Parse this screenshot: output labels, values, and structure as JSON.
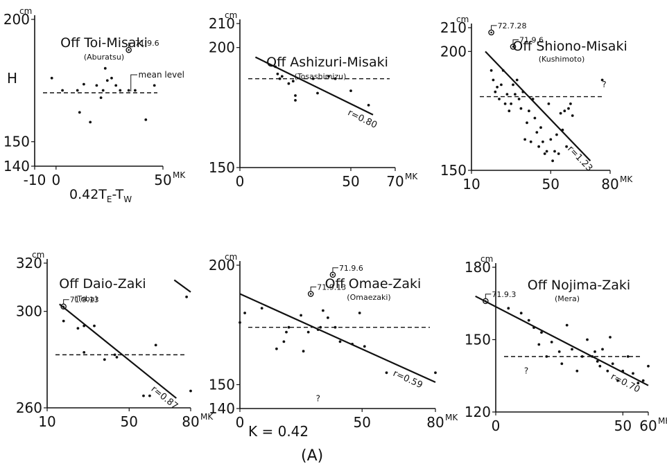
{
  "figure": {
    "k_label": "K = 0.42",
    "panel_label": "(A)"
  },
  "chart_data": [
    {
      "type": "scatter",
      "title": "Off Toi-Misaki",
      "subtitle": "(Aburatsu)",
      "ylabel": "H",
      "yunit": "cm",
      "xlabel": "0.42T",
      "xlabel_sub1": "E",
      "xlabel_mid": "-T",
      "xlabel_sub2": "W",
      "xunit": "MK",
      "xlim": [
        -10,
        50
      ],
      "ylim": [
        140,
        200
      ],
      "xticks": [
        -10,
        0,
        50
      ],
      "yticks": [
        140,
        150,
        200
      ],
      "ytick_labels": [
        "140",
        "150",
        "200"
      ],
      "xtick_labels": [
        "-10",
        "0",
        "50"
      ],
      "mean_level": 170,
      "mean_label": "mean level",
      "points": [
        [
          -2,
          176
        ],
        [
          3,
          171
        ],
        [
          10,
          171
        ],
        [
          11,
          162
        ],
        [
          13,
          173.5
        ],
        [
          16,
          158
        ],
        [
          19,
          173
        ],
        [
          21,
          168
        ],
        [
          22,
          171
        ],
        [
          23,
          180
        ],
        [
          24,
          175
        ],
        [
          26,
          176
        ],
        [
          28,
          173
        ],
        [
          30,
          171
        ],
        [
          34,
          171
        ],
        [
          37,
          171
        ],
        [
          42,
          159
        ],
        [
          46,
          173
        ]
      ],
      "highlighted": [
        {
          "x": 34,
          "y": 187.5,
          "label": "71.9.6"
        }
      ],
      "regression": null
    },
    {
      "type": "scatter",
      "title": "Off Ashizuri-Misaki",
      "subtitle": "(Tosashimizu)",
      "yunit": "cm",
      "xunit": "MK",
      "xlim": [
        0,
        70
      ],
      "ylim": [
        150,
        210
      ],
      "xticks": [
        0,
        50,
        70
      ],
      "yticks": [
        150,
        200,
        210
      ],
      "ytick_labels": [
        "150",
        "200",
        "210"
      ],
      "xtick_labels": [
        "0",
        "50",
        "70"
      ],
      "mean_level": 187,
      "points": [
        [
          16,
          192
        ],
        [
          17,
          189
        ],
        [
          18,
          187
        ],
        [
          19,
          188
        ],
        [
          22,
          185
        ],
        [
          24,
          186
        ],
        [
          25,
          180
        ],
        [
          25,
          178
        ],
        [
          33,
          187
        ],
        [
          35,
          181
        ],
        [
          40,
          188
        ],
        [
          43,
          187
        ],
        [
          50,
          182
        ],
        [
          58,
          176
        ]
      ],
      "highlighted": [],
      "regression": {
        "r_label": "r=0.80",
        "from": [
          7,
          196
        ],
        "to": [
          60,
          172
        ]
      }
    },
    {
      "type": "scatter",
      "title": "Off Shiono-Misaki",
      "subtitle": "(Kushimoto)",
      "yunit": "cm",
      "xunit": "MK",
      "xlim": [
        10,
        80
      ],
      "ylim": [
        150,
        210
      ],
      "xticks": [
        10,
        50,
        80
      ],
      "yticks": [
        150,
        200,
        210
      ],
      "ytick_labels": [
        "150",
        "200",
        "210"
      ],
      "xtick_labels": [
        "10",
        "50",
        "80"
      ],
      "mean_level": 181,
      "points": [
        [
          20,
          192
        ],
        [
          21,
          188
        ],
        [
          22,
          183
        ],
        [
          23,
          185
        ],
        [
          24,
          180
        ],
        [
          25,
          186
        ],
        [
          26,
          192
        ],
        [
          27,
          178
        ],
        [
          28,
          182
        ],
        [
          29,
          175
        ],
        [
          30,
          178
        ],
        [
          31,
          186
        ],
        [
          32,
          182
        ],
        [
          33,
          188
        ],
        [
          34,
          180
        ],
        [
          35,
          176
        ],
        [
          36,
          183
        ],
        [
          37,
          163
        ],
        [
          38,
          170
        ],
        [
          39,
          175
        ],
        [
          40,
          162
        ],
        [
          41,
          180
        ],
        [
          42,
          172
        ],
        [
          43,
          166
        ],
        [
          44,
          160
        ],
        [
          45,
          168
        ],
        [
          46,
          162
        ],
        [
          47,
          157
        ],
        [
          48,
          158
        ],
        [
          49,
          178
        ],
        [
          50,
          163
        ],
        [
          51,
          154
        ],
        [
          52,
          158
        ],
        [
          53,
          165
        ],
        [
          54,
          157
        ],
        [
          55,
          174
        ],
        [
          56,
          167
        ],
        [
          57,
          175
        ],
        [
          58,
          160
        ],
        [
          59,
          176
        ],
        [
          60,
          178
        ],
        [
          61,
          173
        ],
        [
          76,
          188
        ]
      ],
      "highlighted": [
        {
          "x": 20,
          "y": 208,
          "label": "72.7.28"
        },
        {
          "x": 31,
          "y": 202,
          "label": "71.9.6"
        }
      ],
      "question_marks": [
        {
          "x": 77,
          "y": 185
        }
      ],
      "regression": {
        "r_label": "r=1.23",
        "from": [
          17,
          200
        ],
        "to": [
          70,
          154
        ]
      }
    },
    {
      "type": "scatter",
      "title": "Off Daio-Zaki",
      "subtitle": "(Toba)",
      "yunit": "cm",
      "xunit": "MK",
      "xlim": [
        10,
        80
      ],
      "ylim": [
        260,
        320
      ],
      "xticks": [
        10,
        50,
        80
      ],
      "yticks": [
        260,
        300,
        320
      ],
      "ytick_labels": [
        "260",
        "300",
        "320"
      ],
      "xtick_labels": [
        "10",
        "50",
        "80"
      ],
      "mean_level": 282,
      "points": [
        [
          18,
          296
        ],
        [
          25,
          293
        ],
        [
          28,
          294
        ],
        [
          28,
          283
        ],
        [
          33,
          294
        ],
        [
          38,
          280
        ],
        [
          43,
          282
        ],
        [
          44,
          281
        ],
        [
          57,
          265
        ],
        [
          60,
          265
        ],
        [
          63,
          286
        ],
        [
          78,
          306
        ],
        [
          80,
          267
        ]
      ],
      "highlighted": [
        {
          "x": 18,
          "y": 302,
          "label": "71.9.13"
        }
      ],
      "regression": {
        "r_label": "r=0.87",
        "from": [
          16,
          303
        ],
        "to": [
          73,
          264
        ]
      },
      "regression2": {
        "from": [
          72,
          313
        ],
        "to": [
          80,
          308
        ]
      }
    },
    {
      "type": "scatter",
      "title": "Off Omae-Zaki",
      "subtitle": "(Omaezaki)",
      "yunit": "cm",
      "xunit": "MK",
      "xlim": [
        0,
        80
      ],
      "ylim": [
        140,
        200
      ],
      "xticks": [
        0,
        50,
        80
      ],
      "yticks": [
        140,
        150,
        200
      ],
      "ytick_labels": [
        "140",
        "150",
        "200"
      ],
      "xtick_labels": [
        "0",
        "50",
        "80"
      ],
      "mean_level": 174,
      "points": [
        [
          0,
          176
        ],
        [
          2,
          180
        ],
        [
          9,
          182
        ],
        [
          15,
          165
        ],
        [
          18,
          168
        ],
        [
          19,
          172
        ],
        [
          20,
          174
        ],
        [
          25,
          179
        ],
        [
          26,
          164
        ],
        [
          28,
          172
        ],
        [
          32,
          173
        ],
        [
          33,
          174
        ],
        [
          34,
          181
        ],
        [
          36,
          178
        ],
        [
          39,
          174
        ],
        [
          41,
          168
        ],
        [
          46,
          167
        ],
        [
          49,
          180
        ],
        [
          51,
          166
        ],
        [
          60,
          155
        ],
        [
          80,
          155
        ]
      ],
      "highlighted": [
        {
          "x": 38,
          "y": 196,
          "label": "71.9.6"
        },
        {
          "x": 29,
          "y": 188,
          "label": "71.9.13"
        }
      ],
      "question_marks": [
        {
          "x": 32,
          "y": 143
        }
      ],
      "regression": {
        "r_label": "r=0.59",
        "from": [
          0,
          188
        ],
        "to": [
          80,
          151
        ]
      }
    },
    {
      "type": "scatter",
      "title": "Off Nojima-Zaki",
      "subtitle": "(Mera)",
      "yunit": "cm",
      "xunit": "MK'",
      "xlim": [
        0,
        60
      ],
      "ylim": [
        120,
        180
      ],
      "xticks": [
        0,
        50,
        60
      ],
      "yticks": [
        120,
        150,
        180
      ],
      "ytick_labels": [
        "120",
        "150",
        "180"
      ],
      "xtick_labels": [
        "0",
        "50",
        "60"
      ],
      "mean_level": 143,
      "points": [
        [
          5,
          163
        ],
        [
          10,
          161
        ],
        [
          13,
          158
        ],
        [
          15,
          155
        ],
        [
          17,
          148
        ],
        [
          18,
          153
        ],
        [
          20,
          143
        ],
        [
          22,
          149
        ],
        [
          25,
          145
        ],
        [
          26,
          140
        ],
        [
          28,
          156
        ],
        [
          30,
          146
        ],
        [
          32,
          137
        ],
        [
          34,
          143
        ],
        [
          36,
          150
        ],
        [
          38,
          143
        ],
        [
          39,
          145
        ],
        [
          40,
          141
        ],
        [
          41,
          139
        ],
        [
          42,
          146
        ],
        [
          44,
          137
        ],
        [
          45,
          151
        ],
        [
          46,
          140
        ],
        [
          48,
          133
        ],
        [
          50,
          137
        ],
        [
          52,
          143
        ],
        [
          54,
          136
        ],
        [
          56,
          132
        ],
        [
          58,
          133
        ],
        [
          60,
          139
        ]
      ],
      "highlighted": [
        {
          "x": -4,
          "y": 166,
          "label": "71.9.3"
        }
      ],
      "question_marks": [
        {
          "x": 12,
          "y": 136
        }
      ],
      "regression": {
        "r_label": "r=0.70",
        "from": [
          -8,
          168
        ],
        "to": [
          60,
          131
        ]
      }
    }
  ]
}
